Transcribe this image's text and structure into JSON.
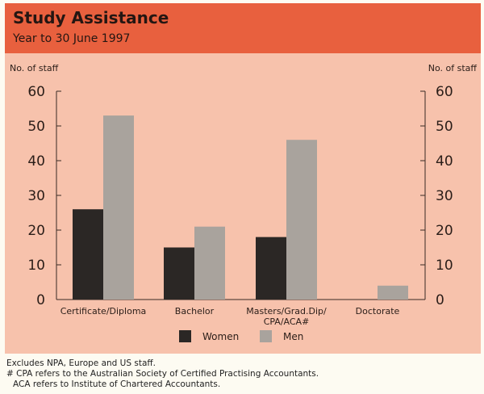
{
  "header": {
    "title": "Study Assistance",
    "subtitle": "Year to 30 June 1997"
  },
  "chart_data": {
    "type": "bar",
    "title": "Study Assistance",
    "subtitle": "Year to 30 June 1997",
    "ylabel_left": "No. of staff",
    "ylabel_right": "No. of staff",
    "ylim": [
      0,
      60
    ],
    "yticks": [
      0,
      10,
      20,
      30,
      40,
      50,
      60
    ],
    "categories": [
      [
        "Certificate/Diploma"
      ],
      [
        "Bachelor"
      ],
      [
        "Masters/Grad.Dip/",
        "CPA/ACA#"
      ],
      [
        "Doctorate"
      ]
    ],
    "series": [
      {
        "name": "Women",
        "color": "#2b2725",
        "values": [
          26,
          15,
          18,
          0
        ]
      },
      {
        "name": "Men",
        "color": "#a9a39d",
        "values": [
          53,
          21,
          46,
          4
        ]
      }
    ],
    "legend_position": "bottom-center"
  },
  "footnotes": [
    "Excludes NPA, Europe and US staff.",
    "# CPA refers to the Australian Society of Certified Practising Accountants.",
    "ACA refers to Institute of Chartered Accountants."
  ],
  "colors": {
    "header_bg": "#e8603e",
    "panel_bg": "#f7c2ac"
  }
}
